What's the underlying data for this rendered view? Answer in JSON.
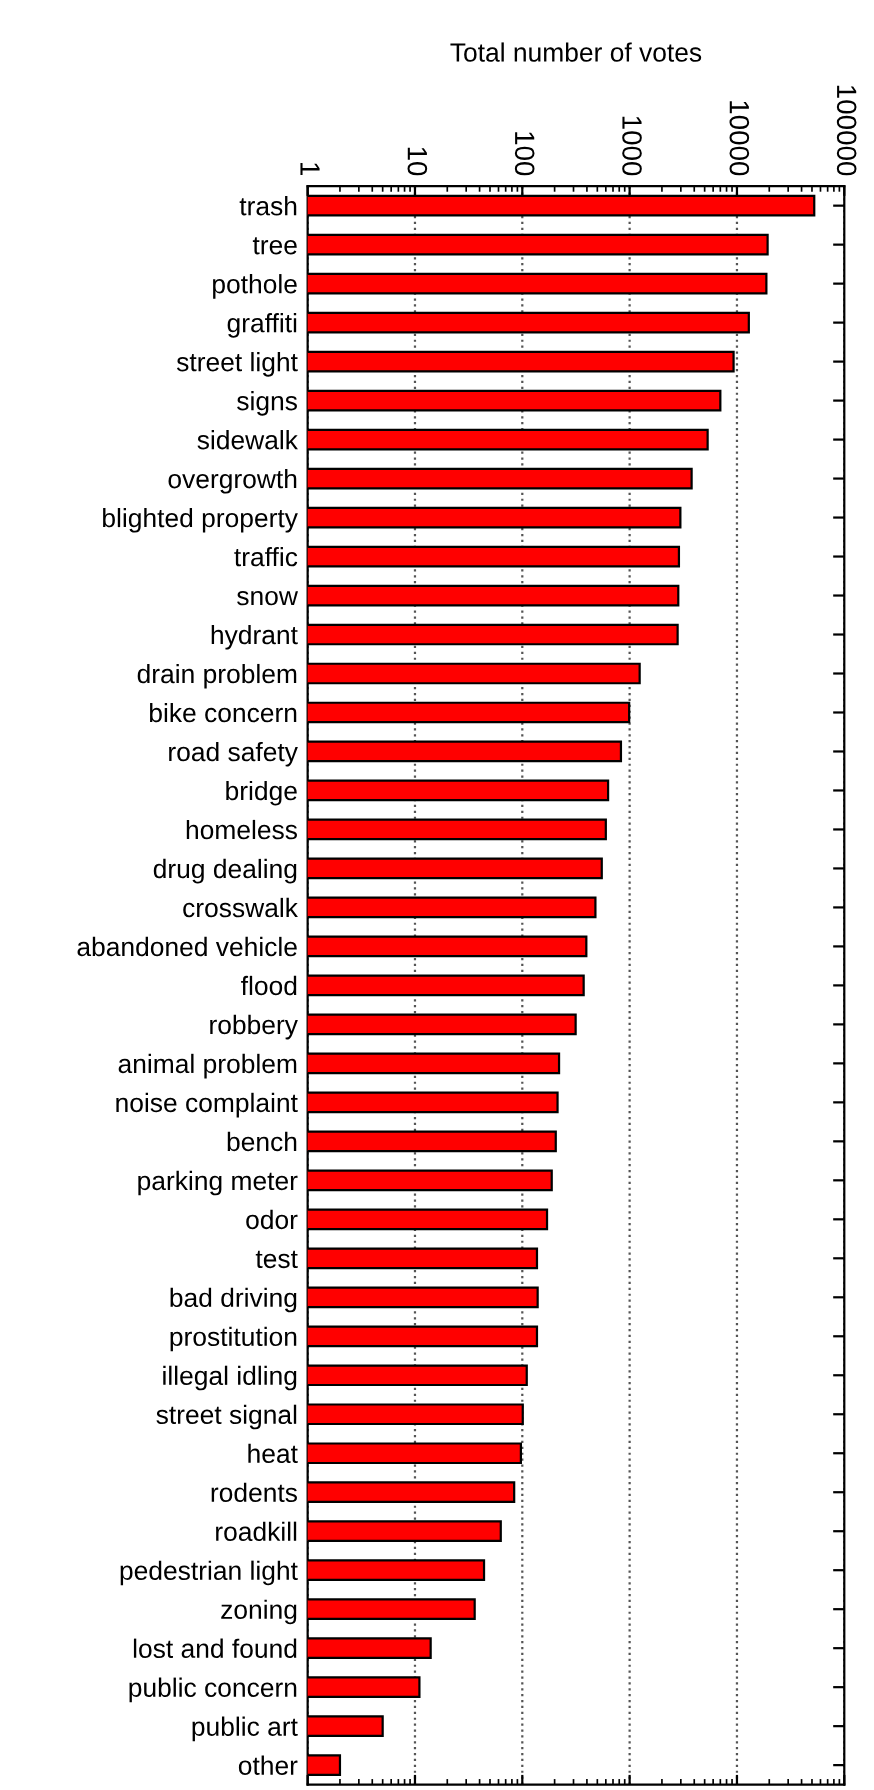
{
  "chart_data": {
    "type": "bar",
    "orientation": "horizontal",
    "log": "x",
    "xlabel": "Total number of votes",
    "categories": [
      "trash",
      "tree",
      "pothole",
      "graffiti",
      "street light",
      "signs",
      "sidewalk",
      "overgrowth",
      "blighted property",
      "traffic",
      "snow",
      "hydrant",
      "drain problem",
      "bike concern",
      "road safety",
      "bridge",
      "homeless",
      "drug dealing",
      "crosswalk",
      "abandoned vehicle",
      "flood",
      "robbery",
      "animal problem",
      "noise complaint",
      "bench",
      "parking meter",
      "odor",
      "test",
      "bad driving",
      "prostitution",
      "illegal idling",
      "street signal",
      "heat",
      "rodents",
      "roadkill",
      "pedestrian light",
      "zoning",
      "lost and found",
      "public concern",
      "public art",
      "other"
    ],
    "values": [
      52500,
      19300,
      18800,
      12900,
      9300,
      7000,
      5330,
      3780,
      2970,
      2880,
      2840,
      2800,
      1240,
      990,
      830,
      630,
      600,
      550,
      480,
      395,
      373,
      314,
      220,
      213,
      205,
      188,
      170,
      137,
      139,
      137,
      110,
      101,
      97,
      84,
      63,
      44,
      36,
      14,
      11,
      5,
      2
    ],
    "color": "#ff0000",
    "xlim": [
      1,
      100000
    ],
    "xticks": [
      1,
      10,
      100,
      1000,
      10000,
      100000
    ],
    "grid": "x",
    "legend": false
  }
}
